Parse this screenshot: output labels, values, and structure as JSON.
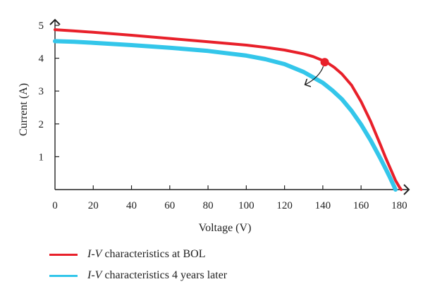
{
  "chart_data": {
    "type": "line",
    "xlabel": "Voltage (V)",
    "ylabel": "Current (A)",
    "xlim": [
      0,
      185
    ],
    "ylim": [
      0,
      5
    ],
    "xticks": [
      "0",
      "20",
      "40",
      "60",
      "80",
      "100",
      "120",
      "140",
      "160",
      "180"
    ],
    "yticks": [
      "1",
      "2",
      "3",
      "4",
      "5"
    ],
    "grid": false,
    "legend_position": "bottom",
    "marker": {
      "x": 141,
      "y": 3.88
    },
    "series": [
      {
        "name_prefix": "I-V",
        "name_suffix": " characteristics at BOL",
        "color": "#e8202a",
        "x": [
          0,
          10,
          20,
          40,
          60,
          80,
          100,
          110,
          120,
          130,
          135,
          140,
          143,
          146,
          150,
          155,
          160,
          165,
          170,
          173,
          176,
          178,
          180,
          181
        ],
        "y": [
          4.87,
          4.83,
          4.79,
          4.7,
          4.6,
          4.5,
          4.4,
          4.33,
          4.25,
          4.13,
          4.05,
          3.93,
          3.84,
          3.72,
          3.52,
          3.18,
          2.68,
          2.08,
          1.38,
          0.95,
          0.55,
          0.28,
          0.08,
          0.0
        ]
      },
      {
        "name_prefix": "I-V",
        "name_suffix": " characteristics 4 years later",
        "color": "#33c6ea",
        "x": [
          0,
          10,
          20,
          40,
          60,
          80,
          100,
          110,
          120,
          130,
          140,
          145,
          150,
          155,
          160,
          165,
          170,
          173,
          175,
          177,
          178
        ],
        "y": [
          4.52,
          4.5,
          4.47,
          4.4,
          4.32,
          4.22,
          4.08,
          3.97,
          3.82,
          3.58,
          3.25,
          3.02,
          2.75,
          2.4,
          1.98,
          1.5,
          0.96,
          0.62,
          0.38,
          0.13,
          0.0
        ]
      }
    ]
  }
}
